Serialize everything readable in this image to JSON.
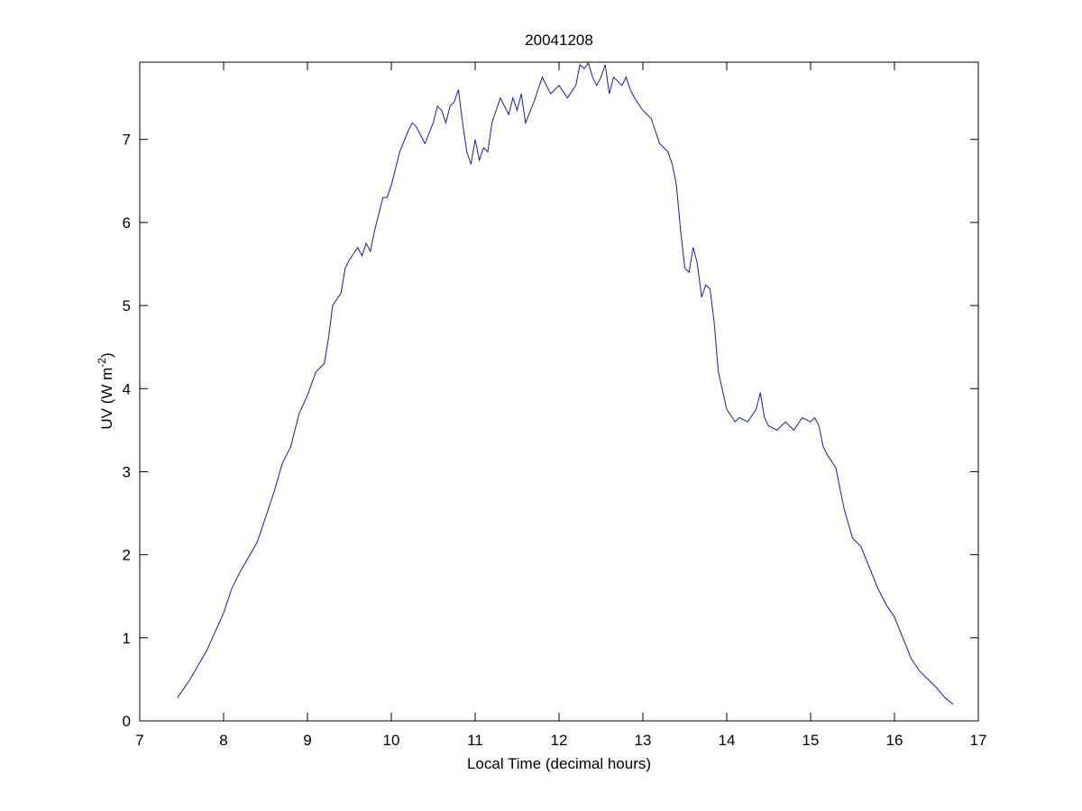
{
  "chart_data": {
    "type": "line",
    "title": "20041208",
    "xlabel": "Local Time (decimal hours)",
    "ylabel": [
      "UV (W m",
      "-2",
      ")"
    ],
    "xlim": [
      7,
      17
    ],
    "ylim": [
      0,
      7.93
    ],
    "xticks": [
      7,
      8,
      9,
      10,
      11,
      12,
      13,
      14,
      15,
      16,
      17
    ],
    "yticks": [
      0,
      1,
      2,
      3,
      4,
      5,
      6,
      7
    ],
    "grid": false,
    "series": [
      {
        "color": "#1a1aa6",
        "x": [
          7.45,
          7.6,
          7.8,
          8.0,
          8.1,
          8.2,
          8.4,
          8.5,
          8.6,
          8.7,
          8.8,
          8.9,
          9.0,
          9.1,
          9.2,
          9.25,
          9.3,
          9.4,
          9.45,
          9.5,
          9.6,
          9.65,
          9.7,
          9.75,
          9.8,
          9.9,
          9.95,
          10.0,
          10.1,
          10.2,
          10.25,
          10.3,
          10.4,
          10.5,
          10.55,
          10.6,
          10.65,
          10.7,
          10.75,
          10.8,
          10.85,
          10.9,
          10.95,
          11.0,
          11.05,
          11.1,
          11.15,
          11.2,
          11.3,
          11.4,
          11.45,
          11.5,
          11.55,
          11.6,
          11.7,
          11.8,
          11.85,
          11.9,
          12.0,
          12.1,
          12.2,
          12.25,
          12.3,
          12.35,
          12.4,
          12.45,
          12.5,
          12.55,
          12.6,
          12.65,
          12.7,
          12.75,
          12.8,
          12.85,
          12.9,
          13.0,
          13.1,
          13.15,
          13.2,
          13.3,
          13.35,
          13.4,
          13.45,
          13.5,
          13.55,
          13.6,
          13.65,
          13.7,
          13.75,
          13.8,
          13.85,
          13.9,
          14.0,
          14.1,
          14.15,
          14.25,
          14.35,
          14.4,
          14.45,
          14.5,
          14.6,
          14.7,
          14.8,
          14.9,
          15.0,
          15.05,
          15.1,
          15.15,
          15.2,
          15.3,
          15.4,
          15.5,
          15.6,
          15.7,
          15.8,
          15.9,
          16.0,
          16.1,
          16.2,
          16.3,
          16.4,
          16.5,
          16.6,
          16.7
        ],
        "values": [
          0.28,
          0.5,
          0.85,
          1.3,
          1.6,
          1.8,
          2.15,
          2.45,
          2.75,
          3.1,
          3.3,
          3.7,
          3.92,
          4.2,
          4.3,
          4.6,
          5.0,
          5.15,
          5.45,
          5.55,
          5.7,
          5.6,
          5.75,
          5.65,
          5.9,
          6.3,
          6.3,
          6.45,
          6.85,
          7.1,
          7.2,
          7.15,
          6.95,
          7.2,
          7.4,
          7.35,
          7.2,
          7.4,
          7.45,
          7.6,
          7.2,
          6.85,
          6.7,
          7.0,
          6.75,
          6.9,
          6.85,
          7.2,
          7.5,
          7.3,
          7.5,
          7.35,
          7.55,
          7.2,
          7.45,
          7.75,
          7.65,
          7.55,
          7.65,
          7.5,
          7.65,
          7.9,
          7.85,
          7.92,
          7.75,
          7.65,
          7.75,
          7.9,
          7.55,
          7.75,
          7.7,
          7.65,
          7.75,
          7.6,
          7.5,
          7.35,
          7.25,
          7.1,
          6.95,
          6.85,
          6.7,
          6.45,
          5.9,
          5.45,
          5.4,
          5.7,
          5.5,
          5.1,
          5.25,
          5.2,
          4.8,
          4.2,
          3.75,
          3.6,
          3.65,
          3.6,
          3.75,
          3.95,
          3.65,
          3.55,
          3.5,
          3.6,
          3.5,
          3.65,
          3.6,
          3.65,
          3.55,
          3.3,
          3.2,
          3.05,
          2.55,
          2.2,
          2.1,
          1.85,
          1.6,
          1.4,
          1.25,
          1.0,
          0.75,
          0.6,
          0.5,
          0.4,
          0.28,
          0.2
        ]
      }
    ]
  }
}
